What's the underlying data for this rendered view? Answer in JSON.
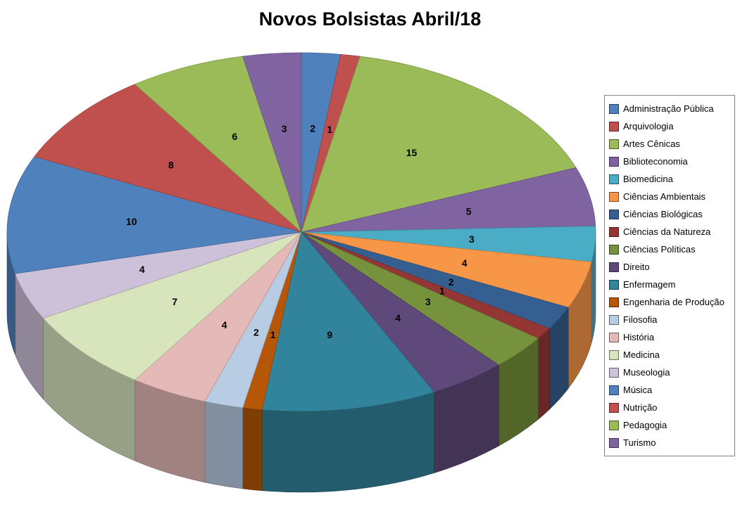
{
  "title": "Novos Bolsistas Abril/18",
  "chart_data": {
    "type": "pie",
    "title": "Novos Bolsistas Abril/18",
    "effect_3d": true,
    "direction": "clockwise",
    "start_angle_deg": 0,
    "legend_position": "right",
    "data_labels": "values",
    "total": 94,
    "categories": [
      "Administração Pública",
      "Arquivologia",
      "Artes Cênicas",
      "Biblioteconomia",
      "Biomedicina",
      "Ciências Ambientais",
      "Ciências Biológicas",
      "Ciências da Natureza",
      "Ciências Políticas",
      "Direito",
      "Enfermagem",
      "Engenharia de Produção",
      "Filosofia",
      "História",
      "Medicina",
      "Museologia",
      "Música",
      "Nutrição",
      "Pedagogia",
      "Turismo"
    ],
    "values": [
      2,
      1,
      15,
      5,
      3,
      4,
      2,
      1,
      3,
      4,
      9,
      1,
      2,
      4,
      7,
      4,
      10,
      8,
      6,
      3
    ],
    "colors": [
      "#4F81BD",
      "#C0504D",
      "#9BBB59",
      "#8064A2",
      "#4BACC6",
      "#F79646",
      "#365F91",
      "#943634",
      "#76923C",
      "#5F497A",
      "#31849B",
      "#B65708",
      "#B8CCE4",
      "#E5B9B7",
      "#D7E4BC",
      "#CCC1D9",
      "#4F81BD",
      "#C0504D",
      "#9BBB59",
      "#8064A2"
    ]
  }
}
